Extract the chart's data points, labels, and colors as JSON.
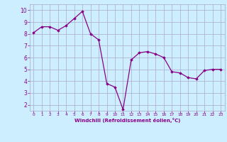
{
  "x": [
    0,
    1,
    2,
    3,
    4,
    5,
    6,
    7,
    8,
    9,
    10,
    11,
    12,
    13,
    14,
    15,
    16,
    17,
    18,
    19,
    20,
    21,
    22,
    23
  ],
  "y": [
    8.1,
    8.6,
    8.6,
    8.3,
    8.7,
    9.3,
    9.9,
    8.0,
    7.5,
    3.8,
    3.5,
    1.6,
    5.8,
    6.4,
    6.5,
    6.3,
    6.0,
    4.8,
    4.7,
    4.3,
    4.2,
    4.9,
    5.0,
    5.0
  ],
  "ylim": [
    1.5,
    10.5
  ],
  "xlim": [
    -0.5,
    23.5
  ],
  "yticks": [
    2,
    3,
    4,
    5,
    6,
    7,
    8,
    9,
    10
  ],
  "xticks": [
    0,
    1,
    2,
    3,
    4,
    5,
    6,
    7,
    8,
    9,
    10,
    11,
    12,
    13,
    14,
    15,
    16,
    17,
    18,
    19,
    20,
    21,
    22,
    23
  ],
  "xlabel": "Windchill (Refroidissement éolien,°C)",
  "line_color": "#880088",
  "marker_color": "#880088",
  "bg_color": "#cceeff",
  "grid_color": "#aaaacc",
  "tick_color": "#880088",
  "label_color": "#880088",
  "marker": "D",
  "marker_size": 1.8,
  "linewidth": 0.9
}
